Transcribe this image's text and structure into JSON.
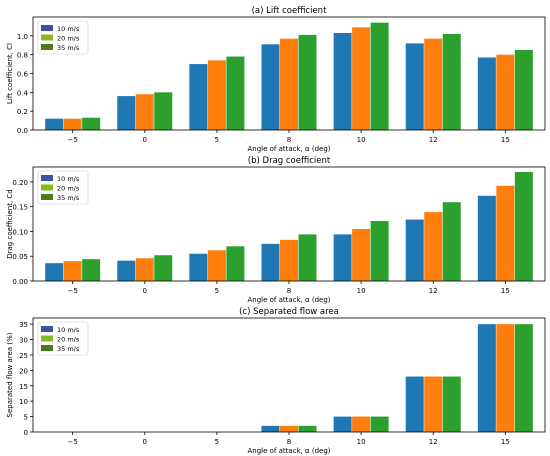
{
  "legend_colors": [
    "#3a54a4",
    "#8ab820",
    "#4a7a1e"
  ],
  "chart_data": [
    {
      "type": "bar",
      "title": "(a) Lift coefficient",
      "xlabel": "Angle of attack, α (deg)",
      "ylabel": "Lift coefficient, Cl",
      "categories": [
        "−5",
        "0",
        "5",
        "8",
        "10",
        "12",
        "15"
      ],
      "ylim": [
        0,
        1.2
      ],
      "yticks": [
        0.0,
        0.2,
        0.4,
        0.6,
        0.8,
        1.0
      ],
      "ytick_labels": [
        "0.0",
        "0.2",
        "0.4",
        "0.6",
        "0.8",
        "1.0"
      ],
      "legend": "top-left",
      "grid": false,
      "series": [
        {
          "name": "10 m/s",
          "color": "#1f77b4",
          "values": [
            0.12,
            0.36,
            0.7,
            0.91,
            1.03,
            0.92,
            0.77
          ]
        },
        {
          "name": "20 m/s",
          "color": "#ff7f0e",
          "values": [
            0.12,
            0.38,
            0.74,
            0.97,
            1.09,
            0.97,
            0.8
          ]
        },
        {
          "name": "35 m/s",
          "color": "#2ca02c",
          "values": [
            0.13,
            0.4,
            0.78,
            1.01,
            1.14,
            1.02,
            0.85
          ]
        }
      ]
    },
    {
      "type": "bar",
      "title": "(b) Drag coefficient",
      "xlabel": "Angle of attack, α (deg)",
      "ylabel": "Drag coefficient, Cd",
      "categories": [
        "−5",
        "0",
        "5",
        "8",
        "10",
        "12",
        "15"
      ],
      "ylim": [
        0,
        0.23
      ],
      "yticks": [
        0.0,
        0.05,
        0.1,
        0.15,
        0.2
      ],
      "ytick_labels": [
        "0.00",
        "0.05",
        "0.10",
        "0.15",
        "0.20"
      ],
      "legend": "top-left",
      "grid": false,
      "series": [
        {
          "name": "10 m/s",
          "color": "#1f77b4",
          "values": [
            0.036,
            0.041,
            0.055,
            0.075,
            0.094,
            0.124,
            0.172
          ]
        },
        {
          "name": "20 m/s",
          "color": "#ff7f0e",
          "values": [
            0.04,
            0.046,
            0.062,
            0.083,
            0.105,
            0.139,
            0.192
          ]
        },
        {
          "name": "35 m/s",
          "color": "#2ca02c",
          "values": [
            0.044,
            0.052,
            0.07,
            0.094,
            0.121,
            0.159,
            0.22
          ]
        }
      ]
    },
    {
      "type": "bar",
      "title": "(c) Separated flow area",
      "xlabel": "Angle of attack, α (deg)",
      "ylabel": "Separated flow area (%)",
      "categories": [
        "−5",
        "0",
        "5",
        "8",
        "10",
        "12",
        "15"
      ],
      "ylim": [
        0,
        37
      ],
      "yticks": [
        0,
        5,
        10,
        15,
        20,
        25,
        30,
        35
      ],
      "ytick_labels": [
        "0",
        "5",
        "10",
        "15",
        "20",
        "25",
        "30",
        "35"
      ],
      "legend": "top-left",
      "grid": false,
      "series": [
        {
          "name": "10 m/s",
          "color": "#1f77b4",
          "values": [
            0,
            0,
            0,
            2,
            5,
            18,
            35
          ]
        },
        {
          "name": "20 m/s",
          "color": "#ff7f0e",
          "values": [
            0,
            0,
            0,
            2,
            5,
            18,
            35
          ]
        },
        {
          "name": "35 m/s",
          "color": "#2ca02c",
          "values": [
            0,
            0,
            0,
            2,
            5,
            18,
            35
          ]
        }
      ]
    }
  ]
}
